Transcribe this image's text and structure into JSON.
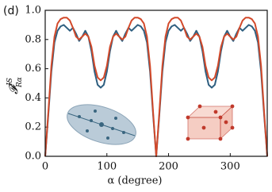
{
  "chart_data": {
    "type": "line",
    "panel_label": "(d)",
    "xlabel": "α (degree)",
    "ylabel": "𝓕",
    "ylabel_sup": "IS",
    "ylabel_sub": "Rα",
    "x": [
      0,
      5,
      10,
      15,
      20,
      25,
      30,
      35,
      40,
      45,
      50,
      55,
      60,
      65,
      70,
      75,
      80,
      85,
      90,
      95,
      100,
      105,
      110,
      115,
      120,
      125,
      130,
      135,
      140,
      145,
      150,
      155,
      160,
      165,
      170,
      175,
      180,
      185,
      190,
      195,
      200,
      205,
      210,
      215,
      220,
      225,
      230,
      235,
      240,
      245,
      250,
      255,
      260,
      265,
      270,
      275,
      280,
      285,
      290,
      295,
      300,
      305,
      310,
      315,
      320,
      325,
      330,
      335,
      340,
      345,
      350,
      355,
      360
    ],
    "series": [
      {
        "color": "#2f5f80",
        "values": [
          0,
          0.28,
          0.58,
          0.78,
          0.86,
          0.89,
          0.9,
          0.88,
          0.86,
          0.88,
          0.84,
          0.79,
          0.82,
          0.86,
          0.82,
          0.72,
          0.58,
          0.49,
          0.47,
          0.49,
          0.58,
          0.72,
          0.82,
          0.86,
          0.82,
          0.79,
          0.84,
          0.88,
          0.86,
          0.88,
          0.9,
          0.89,
          0.86,
          0.78,
          0.58,
          0.28,
          0,
          0.28,
          0.58,
          0.78,
          0.86,
          0.89,
          0.9,
          0.88,
          0.86,
          0.88,
          0.84,
          0.79,
          0.82,
          0.86,
          0.82,
          0.72,
          0.58,
          0.49,
          0.47,
          0.49,
          0.58,
          0.72,
          0.82,
          0.86,
          0.82,
          0.79,
          0.84,
          0.88,
          0.86,
          0.88,
          0.9,
          0.89,
          0.86,
          0.78,
          0.58,
          0.28,
          0
        ]
      },
      {
        "color": "#d2492a",
        "values": [
          0,
          0.3,
          0.62,
          0.82,
          0.91,
          0.94,
          0.95,
          0.95,
          0.93,
          0.88,
          0.82,
          0.8,
          0.82,
          0.84,
          0.82,
          0.75,
          0.62,
          0.54,
          0.52,
          0.54,
          0.62,
          0.75,
          0.82,
          0.84,
          0.82,
          0.8,
          0.82,
          0.88,
          0.93,
          0.95,
          0.95,
          0.94,
          0.91,
          0.82,
          0.62,
          0.3,
          0,
          0.3,
          0.62,
          0.82,
          0.91,
          0.94,
          0.95,
          0.95,
          0.93,
          0.88,
          0.82,
          0.8,
          0.82,
          0.84,
          0.82,
          0.75,
          0.62,
          0.54,
          0.52,
          0.54,
          0.62,
          0.75,
          0.82,
          0.84,
          0.82,
          0.8,
          0.82,
          0.88,
          0.93,
          0.95,
          0.95,
          0.94,
          0.91,
          0.82,
          0.62,
          0.3,
          0
        ]
      }
    ],
    "xlim": [
      0,
      360
    ],
    "xticks": [
      0,
      100,
      200,
      300
    ],
    "ylim": [
      0,
      1
    ],
    "yticks": [
      {
        "value": 0,
        "label": "0.0"
      },
      0.2,
      0.4,
      0.6,
      0.8,
      {
        "value": 1,
        "label": "1.0"
      }
    ],
    "grid": false
  }
}
